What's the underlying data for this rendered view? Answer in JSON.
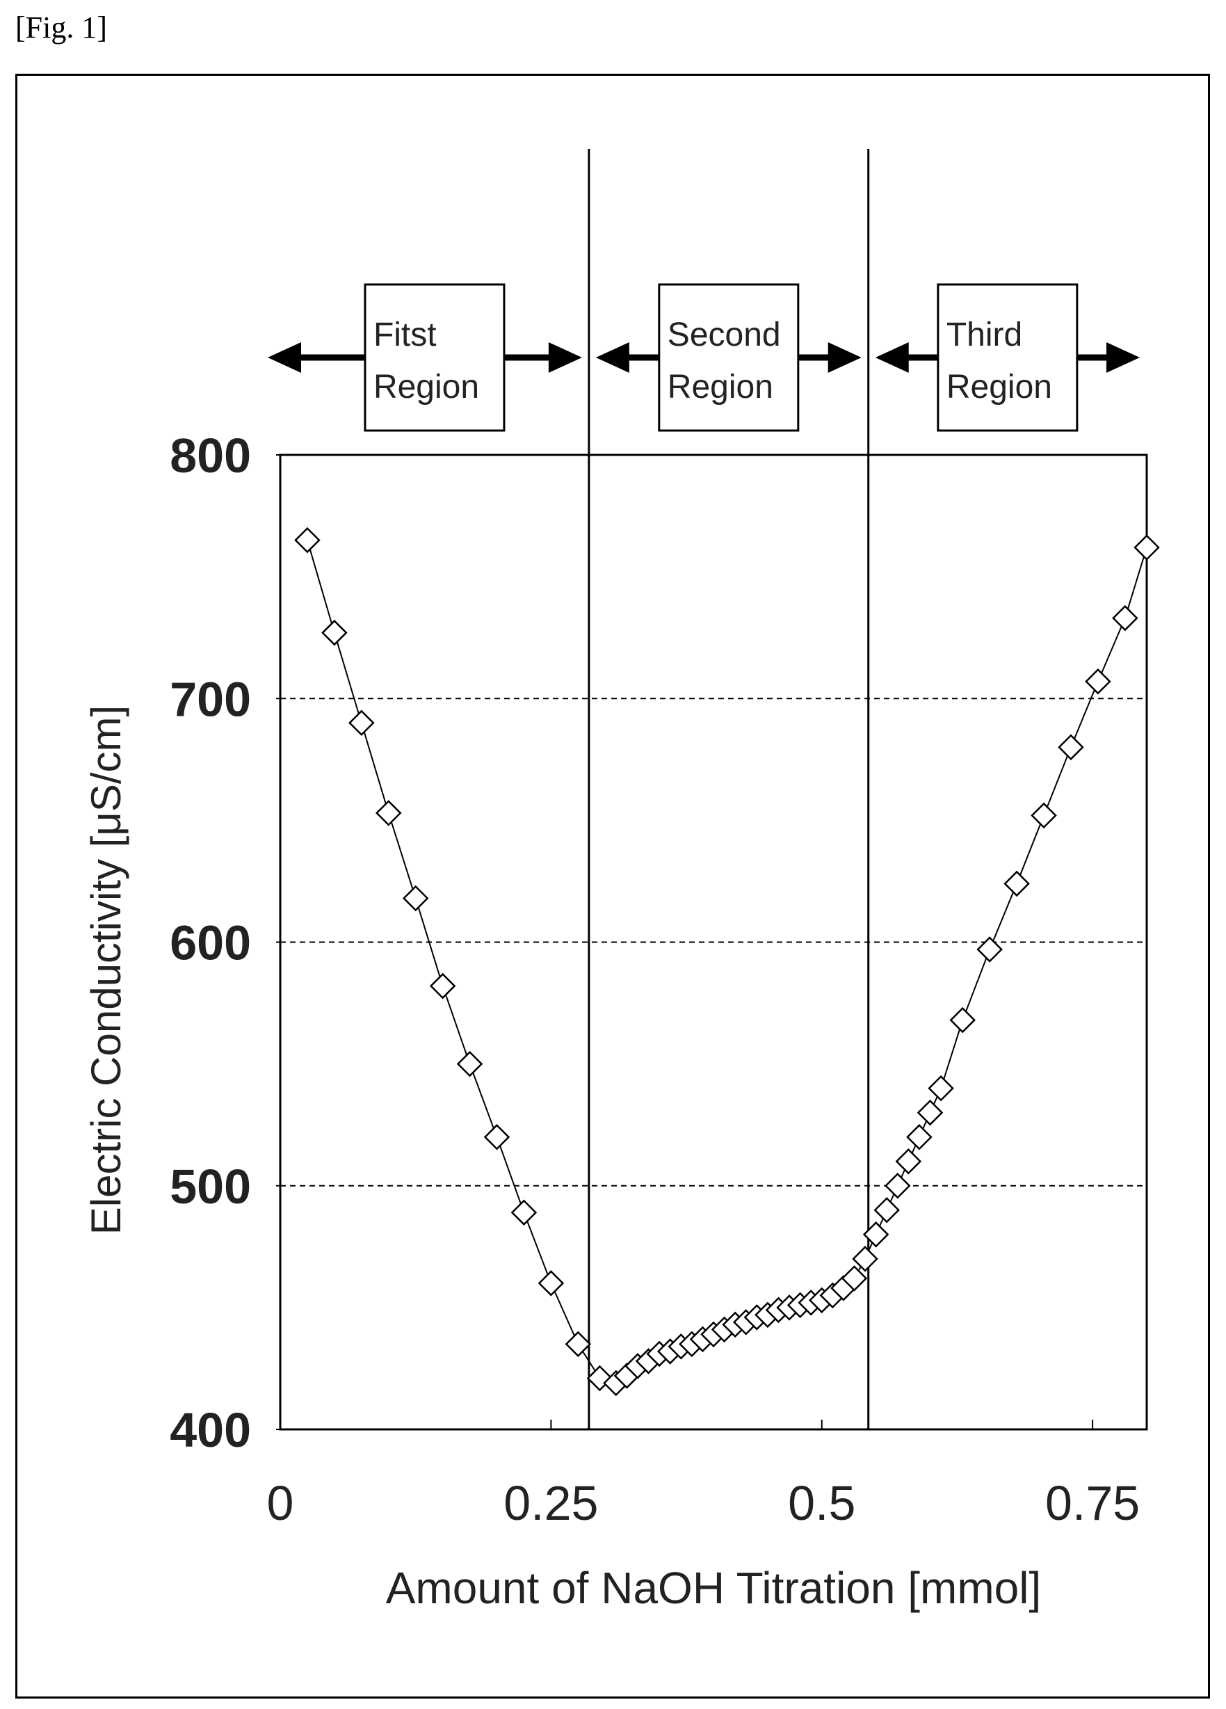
{
  "figure_label": "[Fig. 1]",
  "chart_data": {
    "type": "scatter",
    "marker": "hollow-diamond",
    "line": "connected",
    "xlabel": "Amount of NaOH Titration [mmol]",
    "ylabel": "Electric Conductivity [μS/cm]",
    "xlim": [
      0,
      0.8
    ],
    "ylim": [
      400,
      800
    ],
    "xticks": [
      {
        "value": 0,
        "label": "0"
      },
      {
        "value": 0.25,
        "label": "0.25"
      },
      {
        "value": 0.5,
        "label": "0.5"
      },
      {
        "value": 0.75,
        "label": "0.75"
      }
    ],
    "yticks": [
      {
        "value": 400,
        "label": "400"
      },
      {
        "value": 500,
        "label": "500"
      },
      {
        "value": 600,
        "label": "600"
      },
      {
        "value": 700,
        "label": "700"
      },
      {
        "value": 800,
        "label": "800"
      }
    ],
    "grid": {
      "y": "dashed",
      "values": [
        500,
        600,
        700
      ]
    },
    "boundaries": [
      0.285,
      0.543
    ],
    "regions": [
      {
        "line1": "Fitst",
        "line2": "Region",
        "from": 0,
        "to": 0.285
      },
      {
        "line1": "Second",
        "line2": "Region",
        "from": 0.285,
        "to": 0.543
      },
      {
        "line1": "Third",
        "line2": "Region",
        "from": 0.543,
        "to": 0.8
      }
    ],
    "x": [
      0.025,
      0.05,
      0.075,
      0.1,
      0.125,
      0.15,
      0.175,
      0.2,
      0.225,
      0.25,
      0.275,
      0.295,
      0.31,
      0.32,
      0.33,
      0.34,
      0.35,
      0.36,
      0.37,
      0.38,
      0.39,
      0.4,
      0.41,
      0.42,
      0.43,
      0.44,
      0.45,
      0.46,
      0.47,
      0.48,
      0.49,
      0.5,
      0.51,
      0.52,
      0.53,
      0.54,
      0.55,
      0.56,
      0.57,
      0.58,
      0.59,
      0.6,
      0.61,
      0.63,
      0.655,
      0.68,
      0.705,
      0.73,
      0.755,
      0.78,
      0.8
    ],
    "y": [
      765,
      727,
      690,
      653,
      618,
      582,
      550,
      520,
      489,
      460,
      435,
      421,
      419,
      422,
      426,
      428,
      431,
      432,
      434,
      435,
      437,
      439,
      441,
      443,
      444,
      446,
      447,
      449,
      450,
      451,
      452,
      453,
      455,
      458,
      462,
      470,
      480,
      490,
      500,
      510,
      520,
      530,
      540,
      568,
      597,
      624,
      652,
      680,
      707,
      733,
      762
    ]
  }
}
